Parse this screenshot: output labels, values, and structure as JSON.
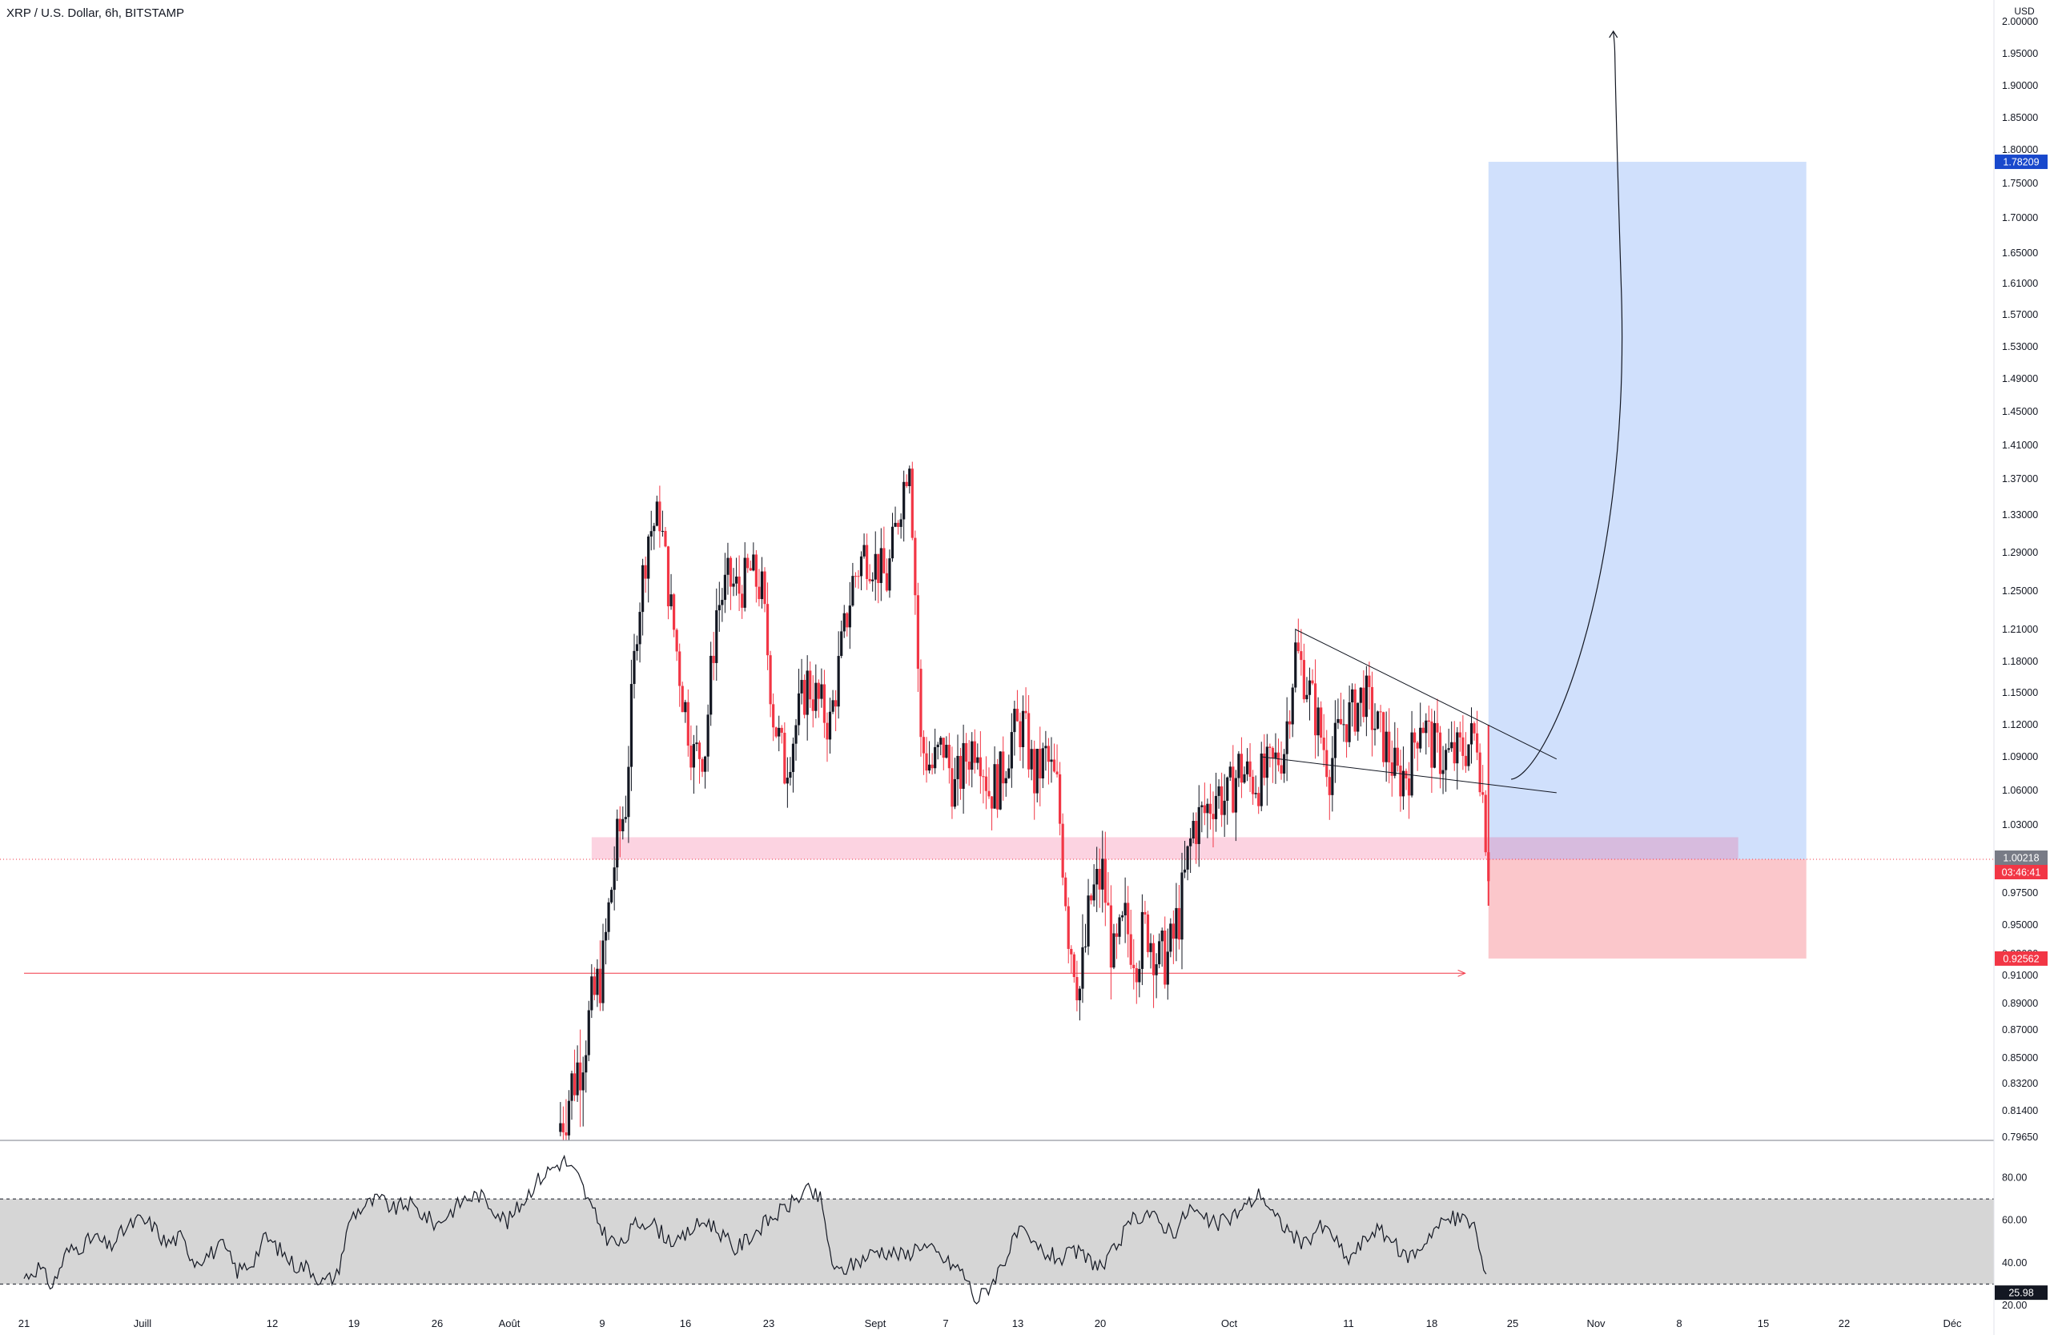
{
  "header": {
    "title": "XRP / U.S. Dollar, 6h, BITSTAMP"
  },
  "price_axis": {
    "currency": "USD",
    "labels": [
      "2.00000",
      "1.95000",
      "1.90000",
      "1.85000",
      "1.80000",
      "1.75000",
      "1.70000",
      "1.65000",
      "1.61000",
      "1.57000",
      "1.53000",
      "1.49000",
      "1.45000",
      "1.41000",
      "1.37000",
      "1.33000",
      "1.29000",
      "1.25000",
      "1.21000",
      "1.18000",
      "1.15000",
      "1.12000",
      "1.09000",
      "1.06000",
      "1.03000",
      "0.97500",
      "0.95000",
      "0.93000",
      "0.91000",
      "0.89000",
      "0.87000",
      "0.85000",
      "0.83200",
      "0.81400",
      "0.79650"
    ],
    "badges": {
      "target": "1.78209",
      "current": "1.00218",
      "countdown": "03:46:41",
      "stop": "0.92562"
    },
    "colors": {
      "target": "#1848cc",
      "current": "#787b86",
      "stop": "#f23645"
    }
  },
  "rsi_axis": {
    "labels": [
      "80.00",
      "60.00",
      "40.00",
      "20.00"
    ],
    "value_badge": "25.98"
  },
  "time_axis": {
    "labels": [
      "21",
      "Juill",
      "12",
      "19",
      "26",
      "Août",
      "9",
      "16",
      "23",
      "Sept",
      "7",
      "13",
      "20",
      "Oct",
      "11",
      "18",
      "25",
      "Nov",
      "8",
      "15",
      "22",
      "Déc"
    ]
  },
  "chart_data": [
    {
      "type": "candlestick",
      "title": "XRP / U.S. Dollar, 6h, BITSTAMP",
      "y_unit": "USD",
      "ylim": [
        0.7965,
        2.0
      ],
      "x_range": [
        "2021-06-20",
        "2021-12-07"
      ],
      "colors": {
        "up": "#131722",
        "down": "#f23645"
      },
      "close_path": [
        [
          "2021-08-06",
          0.8
        ],
        [
          "2021-08-08",
          0.85
        ],
        [
          "2021-08-10",
          0.92
        ],
        [
          "2021-08-11",
          1.0
        ],
        [
          "2021-08-12",
          1.05
        ],
        [
          "2021-08-13",
          1.22
        ],
        [
          "2021-08-14",
          1.31
        ],
        [
          "2021-08-15",
          1.33
        ],
        [
          "2021-08-16",
          1.23
        ],
        [
          "2021-08-17",
          1.15
        ],
        [
          "2021-08-18",
          1.09
        ],
        [
          "2021-08-19",
          1.1
        ],
        [
          "2021-08-20",
          1.23
        ],
        [
          "2021-08-21",
          1.26
        ],
        [
          "2021-08-22",
          1.25
        ],
        [
          "2021-08-23",
          1.27
        ],
        [
          "2021-08-24",
          1.25
        ],
        [
          "2021-08-25",
          1.13
        ],
        [
          "2021-08-26",
          1.08
        ],
        [
          "2021-08-27",
          1.12
        ],
        [
          "2021-08-28",
          1.16
        ],
        [
          "2021-08-29",
          1.14
        ],
        [
          "2021-08-30",
          1.12
        ],
        [
          "2021-08-31",
          1.19
        ],
        [
          "2021-09-01",
          1.26
        ],
        [
          "2021-09-02",
          1.29
        ],
        [
          "2021-09-03",
          1.28
        ],
        [
          "2021-09-04",
          1.26
        ],
        [
          "2021-09-05",
          1.33
        ],
        [
          "2021-09-06",
          1.4
        ],
        [
          "2021-09-07",
          1.1
        ],
        [
          "2021-09-08",
          1.08
        ],
        [
          "2021-09-09",
          1.1
        ],
        [
          "2021-09-10",
          1.06
        ],
        [
          "2021-09-11",
          1.09
        ],
        [
          "2021-09-12",
          1.11
        ],
        [
          "2021-09-13",
          1.06
        ],
        [
          "2021-09-14",
          1.07
        ],
        [
          "2021-09-15",
          1.11
        ],
        [
          "2021-09-16",
          1.12
        ],
        [
          "2021-09-17",
          1.07
        ],
        [
          "2021-09-18",
          1.09
        ],
        [
          "2021-09-19",
          1.06
        ],
        [
          "2021-09-20",
          0.95
        ],
        [
          "2021-09-21",
          0.9
        ],
        [
          "2021-09-22",
          0.97
        ],
        [
          "2021-09-23",
          0.99
        ],
        [
          "2021-09-24",
          0.92
        ],
        [
          "2021-09-25",
          0.95
        ],
        [
          "2021-09-26",
          0.93
        ],
        [
          "2021-09-27",
          0.95
        ],
        [
          "2021-09-28",
          0.92
        ],
        [
          "2021-09-29",
          0.93
        ],
        [
          "2021-09-30",
          0.97
        ],
        [
          "2021-10-01",
          1.03
        ],
        [
          "2021-10-02",
          1.04
        ],
        [
          "2021-10-03",
          1.06
        ],
        [
          "2021-10-04",
          1.05
        ],
        [
          "2021-10-05",
          1.08
        ],
        [
          "2021-10-06",
          1.07
        ],
        [
          "2021-10-07",
          1.07
        ],
        [
          "2021-10-08",
          1.08
        ],
        [
          "2021-10-09",
          1.1
        ],
        [
          "2021-10-10",
          1.19
        ],
        [
          "2021-10-11",
          1.16
        ],
        [
          "2021-10-12",
          1.12
        ],
        [
          "2021-10-13",
          1.08
        ],
        [
          "2021-10-14",
          1.12
        ],
        [
          "2021-10-15",
          1.13
        ],
        [
          "2021-10-16",
          1.15
        ],
        [
          "2021-10-17",
          1.12
        ],
        [
          "2021-10-18",
          1.1
        ],
        [
          "2021-10-19",
          1.07
        ],
        [
          "2021-10-20",
          1.08
        ],
        [
          "2021-10-21",
          1.13
        ],
        [
          "2021-10-22",
          1.1
        ],
        [
          "2021-10-23",
          1.09
        ],
        [
          "2021-10-24",
          1.09
        ],
        [
          "2021-10-25",
          1.1
        ],
        [
          "2021-10-26",
          1.11
        ],
        [
          "2021-10-27",
          1.0
        ]
      ],
      "annotations": {
        "support_zone": {
          "from": "2021-08-09",
          "to": "2021-11-18",
          "low": 1.002,
          "high": 1.02
        },
        "level_line": {
          "from": "2021-06-20",
          "to": "2021-10-26",
          "price": 0.912
        },
        "falling_wedge": {
          "upper": [
            [
              "2021-10-10",
              1.21
            ],
            [
              "2021-11-02",
              1.088
            ]
          ],
          "lower": [
            [
              "2021-10-07",
              1.09
            ],
            [
              "2021-11-02",
              1.058
            ]
          ]
        },
        "long_position": {
          "from": "2021-10-27",
          "to": "2021-11-24",
          "entry": 1.00218,
          "target": 1.78209,
          "stop": 0.92562
        },
        "projection_curve": [
          [
            "2021-10-29",
            1.07
          ],
          [
            "2021-11-01",
            1.08
          ],
          [
            "2021-11-05",
            1.25
          ],
          [
            "2021-11-07",
            1.6
          ],
          [
            "2021-11-07",
            2.0
          ]
        ]
      }
    },
    {
      "type": "line",
      "series": [
        {
          "values_note_free": true,
          "values": [
            33,
            38,
            29,
            45,
            48,
            52,
            47,
            55,
            60,
            58,
            49,
            52,
            41,
            44,
            48,
            36,
            40,
            52,
            46,
            39,
            38,
            31,
            34,
            62,
            67,
            70,
            65,
            68,
            63,
            58,
            64,
            70,
            72,
            66,
            59,
            68,
            78,
            84,
            88,
            80,
            64,
            52,
            48,
            58,
            60,
            53,
            49,
            56,
            60,
            54,
            46,
            52,
            58,
            63,
            68,
            74,
            70,
            35,
            38,
            42,
            46,
            45,
            43,
            49,
            45,
            40,
            36,
            22,
            30,
            42,
            55,
            48,
            44,
            42,
            45,
            41,
            38,
            50,
            60,
            64,
            58,
            55,
            66,
            60,
            58,
            62,
            67,
            73,
            61,
            55,
            48,
            57,
            54,
            41,
            48,
            56,
            52,
            43,
            45,
            55,
            60,
            61,
            58,
            26
          ]
        }
      ],
      "x_range": [
        "2021-06-20",
        "2021-10-27"
      ],
      "ylim": [
        20,
        90
      ],
      "bands": {
        "upper": 70,
        "lower": 30
      },
      "ylabel": ""
    }
  ]
}
